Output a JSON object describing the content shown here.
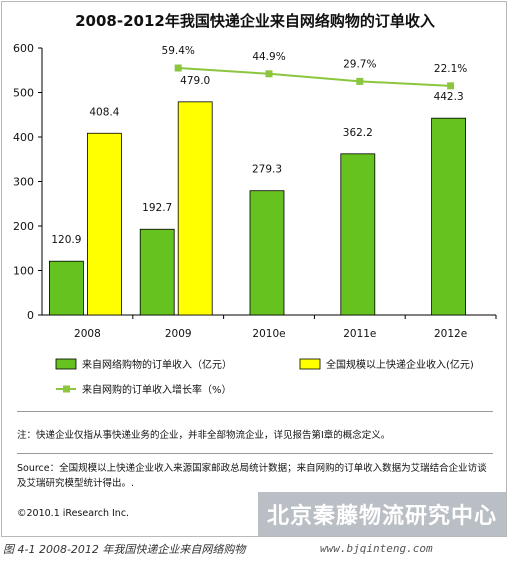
{
  "chart_data": {
    "type": "bar",
    "title": "2008-2012年我国快递企业来自网络购物的订单收入",
    "categories": [
      "2008",
      "2009",
      "2010e",
      "2011e",
      "2012e"
    ],
    "series": [
      {
        "name": "来自网络购物的订单收入（亿元）",
        "type": "bar",
        "color": "#66c21e",
        "values": [
          120.9,
          192.7,
          279.3,
          362.2,
          442.3
        ]
      },
      {
        "name": "全国规模以上快递企业收入(亿元)",
        "type": "bar",
        "color": "#ffff00",
        "values": [
          408.4,
          479.0,
          null,
          null,
          null
        ]
      },
      {
        "name": "来自网购的订单收入增长率（%）",
        "type": "line",
        "color": "#8cc63f",
        "values": [
          null,
          59.4,
          44.9,
          29.7,
          22.1
        ],
        "labels": [
          "",
          "59.4%",
          "44.9%",
          "29.7%",
          "22.1%"
        ],
        "plot_y": [
          null,
          555,
          542,
          525,
          515
        ]
      }
    ],
    "yticks": [
      "0",
      "100",
      "200",
      "300",
      "400",
      "500",
      "600"
    ],
    "ylim": [
      0,
      600
    ],
    "grid": false,
    "legend": "bottom"
  },
  "notes": {
    "note": "注：快递企业仅指从事快递业务的企业，并非全部物流企业，详见报告第I章的概念定义。",
    "source": "Source：全国规模以上快递企业收入来源国家邮政总局统计数据；来自网购的订单收入数据为艾瑞结合企业访谈及艾瑞研究模型统计得出。.",
    "copyright": "©2010.1 iResearch Inc."
  },
  "watermark": {
    "text": "北京秦藤物流研究中心",
    "url": "www.bjqinteng.com"
  },
  "caption": "图 4-1 2008-2012 年我国快递企业来自网络购物"
}
